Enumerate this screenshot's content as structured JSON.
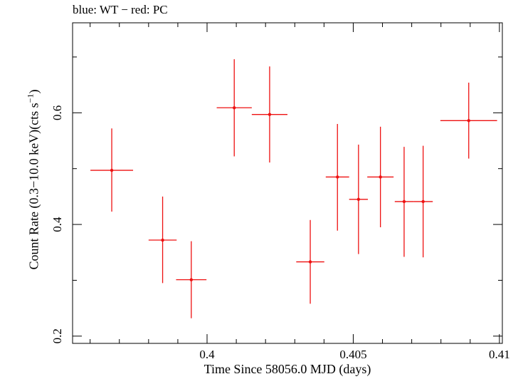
{
  "chart_data": {
    "type": "scatter",
    "title": "blue: WT − red: PC",
    "xlabel": "Time Since 58056.0 MJD (days)",
    "ylabel_main": "Count Rate (0.3−10.0 keV)(cts s",
    "ylabel_exp": "−1",
    "ylabel_close": ")",
    "xlim": [
      0.3954,
      0.4101
    ],
    "ylim": [
      0.187,
      0.7612
    ],
    "xticks": [
      0.4,
      0.405,
      0.41
    ],
    "xtick_labels": [
      "0.4",
      "0.405",
      "0.41"
    ],
    "yticks": [
      0.2,
      0.4,
      0.6
    ],
    "ytick_labels": [
      "0.2",
      "0.4",
      "0.6"
    ],
    "grid": false,
    "color": "#ee1111",
    "series": [
      {
        "points": [
          {
            "x": 0.39674,
            "xerr": 0.00073,
            "y": 0.497,
            "yerr_lo": 0.074,
            "yerr_hi": 0.075
          },
          {
            "x": 0.39848,
            "xerr": 0.00048,
            "y": 0.372,
            "yerr_lo": 0.077,
            "yerr_hi": 0.078
          },
          {
            "x": 0.39946,
            "xerr": 0.00052,
            "y": 0.301,
            "yerr_lo": 0.069,
            "yerr_hi": 0.069
          },
          {
            "x": 0.40093,
            "xerr": 0.0006,
            "y": 0.609,
            "yerr_lo": 0.087,
            "yerr_hi": 0.087
          },
          {
            "x": 0.40214,
            "xerr": 0.00061,
            "y": 0.597,
            "yerr_lo": 0.086,
            "yerr_hi": 0.086
          },
          {
            "x": 0.40353,
            "xerr": 0.00048,
            "y": 0.333,
            "yerr_lo": 0.075,
            "yerr_hi": 0.075
          },
          {
            "x": 0.40446,
            "xerr": 0.0004,
            "y": 0.485,
            "yerr_lo": 0.096,
            "yerr_hi": 0.095
          },
          {
            "x": 0.40518,
            "xerr": 0.00032,
            "y": 0.445,
            "yerr_lo": 0.098,
            "yerr_hi": 0.098
          },
          {
            "x": 0.40593,
            "xerr": 0.00045,
            "y": 0.485,
            "yerr_lo": 0.09,
            "yerr_hi": 0.09
          },
          {
            "x": 0.40674,
            "xerr": 0.00032,
            "y": 0.441,
            "yerr_lo": 0.099,
            "yerr_hi": 0.098
          },
          {
            "x": 0.40739,
            "xerr": 0.00033,
            "y": 0.441,
            "yerr_lo": 0.1,
            "yerr_hi": 0.1
          },
          {
            "x": 0.40895,
            "xerr": 0.00097,
            "y": 0.586,
            "yerr_lo": 0.068,
            "yerr_hi": 0.068
          }
        ]
      }
    ]
  }
}
